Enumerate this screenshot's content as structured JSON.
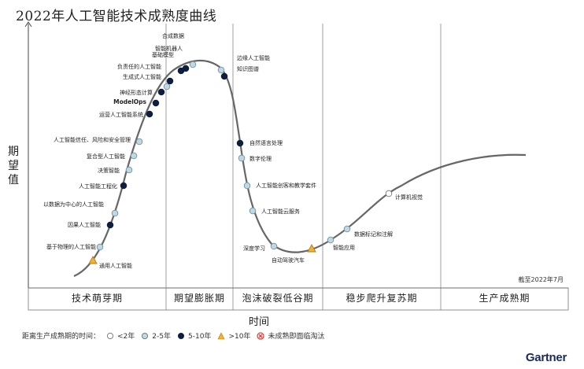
{
  "title": "2022年人工智能技术成熟度曲线",
  "y_axis_label": [
    "期",
    "望",
    "值"
  ],
  "x_axis_label": "时间",
  "as_of": "截至2022年7月",
  "brand": "Gartner",
  "legend": {
    "prefix": "距离生产成熟期的时间：",
    "items": [
      {
        "label": "<2年",
        "color": "#ffffff",
        "shape": "circle"
      },
      {
        "label": "2-5年",
        "color": "#bcd9e8",
        "shape": "circle"
      },
      {
        "label": "5-10年",
        "color": "#0e1e3d",
        "shape": "circle"
      },
      {
        "label": ">10年",
        "color": "#f2b134",
        "shape": "triangle"
      },
      {
        "label": "未成熟即面临淘汰",
        "color": "#e03c31",
        "shape": "cross"
      }
    ]
  },
  "chart_data": {
    "type": "scatter",
    "title": "2022年人工智能技术成熟度曲线",
    "xlabel": "时间",
    "ylabel": "期望值",
    "phases": [
      "技术萌芽期",
      "期望膨胀期",
      "泡沫破裂低谷期",
      "稳步爬升复苏期",
      "生产成熟期"
    ],
    "points": [
      {
        "label": "通用人工智能",
        "phase": "技术萌芽期",
        "category": ">10年"
      },
      {
        "label": "基于物理的人工智能",
        "phase": "技术萌芽期",
        "category": "2-5年"
      },
      {
        "label": "因果人工智能",
        "phase": "技术萌芽期",
        "category": "5-10年"
      },
      {
        "label": "以数据为中心的人工智能",
        "phase": "技术萌芽期",
        "category": "2-5年"
      },
      {
        "label": "人工智能工程化",
        "phase": "技术萌芽期",
        "category": "5-10年"
      },
      {
        "label": "决策智能",
        "phase": "技术萌芽期",
        "category": "2-5年"
      },
      {
        "label": "复合型人工智能",
        "phase": "技术萌芽期",
        "category": "2-5年"
      },
      {
        "label": "人工智能信任、风险和安全管理",
        "phase": "技术萌芽期",
        "category": "2-5年"
      },
      {
        "label": "运营人工智能系统",
        "phase": "技术萌芽期",
        "category": "5-10年"
      },
      {
        "label": "ModelOps",
        "phase": "技术萌芽期",
        "category": "5-10年"
      },
      {
        "label": "神经形态计算",
        "phase": "技术萌芽期",
        "category": "5-10年"
      },
      {
        "label": "生成式人工智能",
        "phase": "期望膨胀期",
        "category": "2-5年"
      },
      {
        "label": "负责任的人工智能",
        "phase": "期望膨胀期",
        "category": "5-10年"
      },
      {
        "label": "基础模型",
        "phase": "期望膨胀期",
        "category": "5-10年"
      },
      {
        "label": "智能机器人",
        "phase": "期望膨胀期",
        "category": "5-10年"
      },
      {
        "label": "合成数据",
        "phase": "期望膨胀期",
        "category": "2-5年"
      },
      {
        "label": "边缘人工智能",
        "phase": "期望膨胀期",
        "category": "2-5年"
      },
      {
        "label": "知识图谱",
        "phase": "期望膨胀期",
        "category": "5-10年"
      },
      {
        "label": "自然语言处理",
        "phase": "泡沫破裂低谷期",
        "category": "5-10年"
      },
      {
        "label": "数字伦理",
        "phase": "泡沫破裂低谷期",
        "category": "2-5年"
      },
      {
        "label": "人工智能创客和教学套件",
        "phase": "泡沫破裂低谷期",
        "category": "2-5年"
      },
      {
        "label": "人工智能云服务",
        "phase": "泡沫破裂低谷期",
        "category": "2-5年"
      },
      {
        "label": "深度学习",
        "phase": "泡沫破裂低谷期",
        "category": "2-5年"
      },
      {
        "label": "自动驾驶汽车",
        "phase": "泡沫破裂低谷期",
        "category": ">10年"
      },
      {
        "label": "智能应用",
        "phase": "稳步爬升复苏期",
        "category": "2-5年"
      },
      {
        "label": "数据标记和注解",
        "phase": "稳步爬升复苏期",
        "category": "2-5年"
      },
      {
        "label": "计算机视觉",
        "phase": "稳步爬升复苏期",
        "category": "<2年"
      }
    ]
  }
}
